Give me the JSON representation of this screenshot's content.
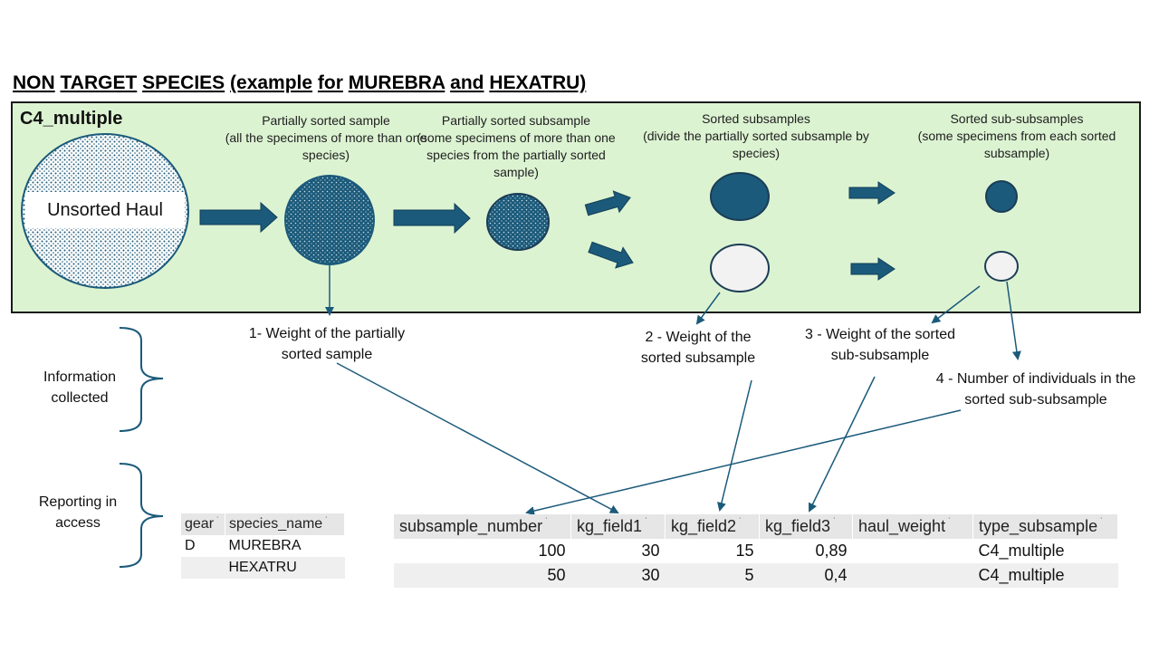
{
  "title": {
    "parts": [
      "NON",
      "TARGET",
      "SPECIES",
      "(example",
      "for",
      "MUREBRA",
      "and",
      "HEXATRU)"
    ]
  },
  "panel": {
    "label": "C4_multiple",
    "unsorted_label": "Unsorted Haul",
    "stages": [
      "Partially sorted sample\n(all the specimens of more than one\nspecies)",
      "Partially sorted subsample\n(some specimens of more than one\nspecies from the partially sorted\nsample)",
      "Sorted subsamples\n(divide the partially sorted subsample by\nspecies)",
      "Sorted sub-subsamples\n(some specimens from each sorted\nsubsample)"
    ]
  },
  "notes": [
    "1- Weight of the partially\nsorted sample",
    "2 - Weight of the\nsorted subsample",
    "3 - Weight of the sorted\nsub-subsample",
    "4 - Number of individuals in the\nsorted sub-subsample"
  ],
  "side_labels": {
    "information": "Information\ncollected",
    "reporting": "Reporting in\naccess"
  },
  "colors": {
    "dark": "#1b5a7a",
    "panel": "#dcf3d2",
    "light_circle": "#f2f2f2"
  },
  "species_table": {
    "headers": [
      "gear",
      "species_name"
    ],
    "rows": [
      [
        "D",
        "MUREBRA"
      ],
      [
        "",
        "HEXATRU"
      ]
    ]
  },
  "subsample_table": {
    "headers": [
      "subsample_number",
      "kg_field1",
      "kg_field2",
      "kg_field3",
      "haul_weight",
      "type_subsample"
    ],
    "rows": [
      [
        "100",
        "30",
        "15",
        "0,89",
        "",
        "C4_multiple"
      ],
      [
        "50",
        "30",
        "5",
        "0,4",
        "",
        "C4_multiple"
      ]
    ]
  }
}
